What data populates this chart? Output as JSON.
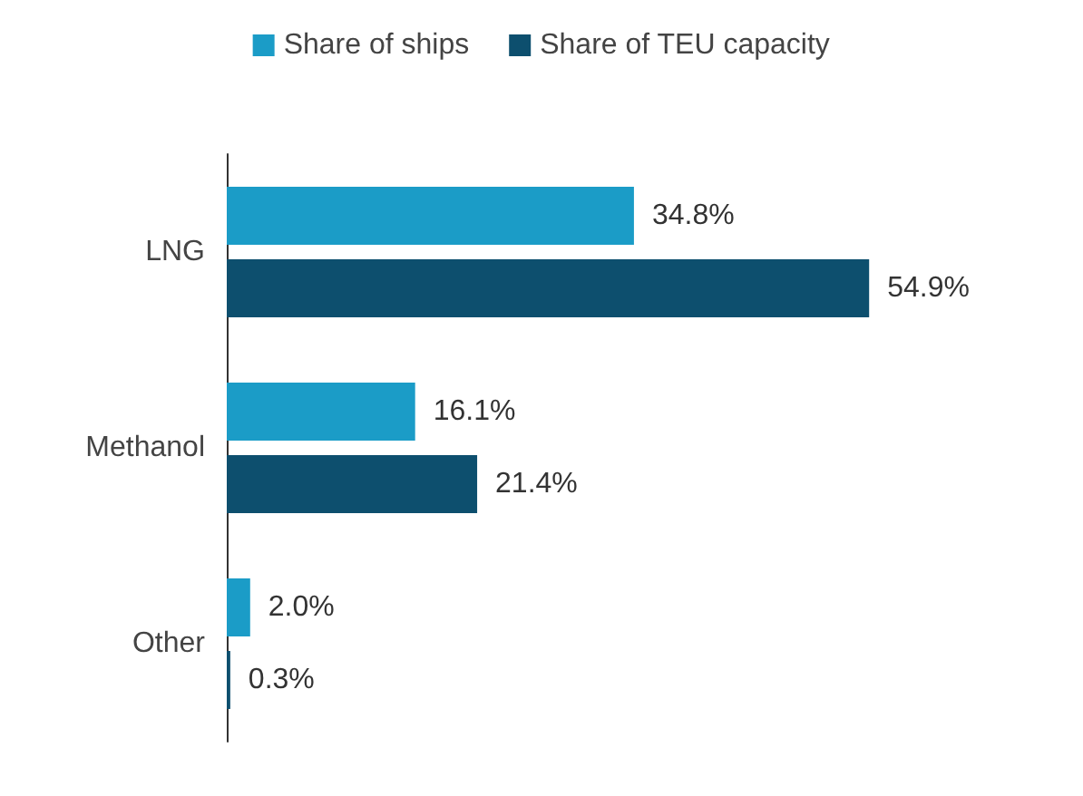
{
  "chart_data": {
    "type": "bar",
    "orientation": "horizontal",
    "categories": [
      "LNG",
      "Methanol",
      "Other"
    ],
    "series": [
      {
        "name": "Share of ships",
        "color": "#1b9cc7",
        "values": [
          34.8,
          16.1,
          2.0
        ],
        "value_labels": [
          "34.8%",
          "16.1%",
          "2.0%"
        ]
      },
      {
        "name": "Share of TEU capacity",
        "color": "#0d4f6e",
        "values": [
          54.9,
          21.4,
          0.3
        ],
        "value_labels": [
          "54.9%",
          "21.4%",
          "0.3%"
        ]
      }
    ],
    "legend": "top"
  }
}
